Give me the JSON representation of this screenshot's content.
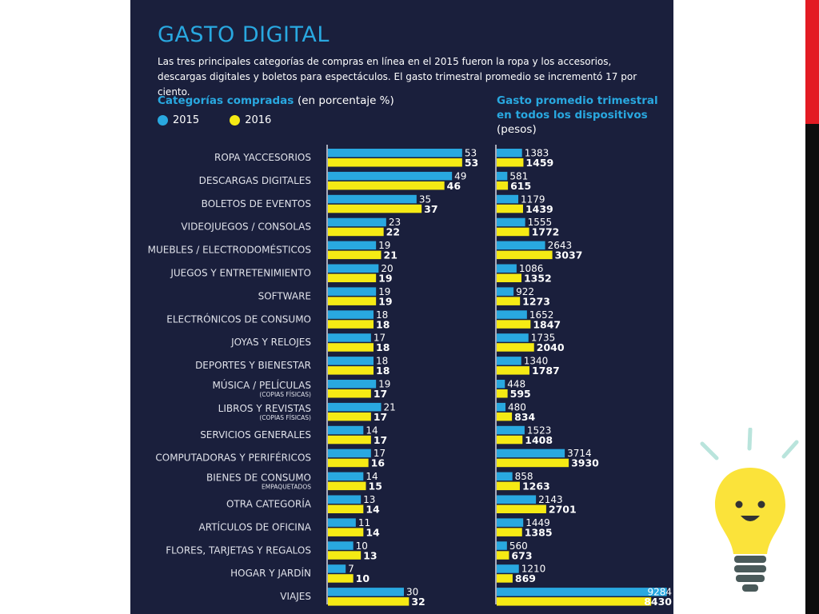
{
  "infographic": {
    "title": "GASTO DIGITAL",
    "subtitle": "Las tres principales categorías de compras en línea en el 2015 fueron la ropa y los accesorios, descargas digitales y boletos para espectáculos. El gasto trimestral promedio se incrementó 17 por ciento.",
    "left_title": "Categorías compradas",
    "left_title_units": "(en porcentaje %)",
    "right_title_lines": [
      "Gasto promedio trimestral",
      "en todos los dispositivos",
      "(pesos)"
    ]
  },
  "colors": {
    "series_2015": "#29a8e0",
    "series_2016": "#f5ea14",
    "panel_background": "#1a1f3c",
    "accent_red": "#e31b23"
  },
  "decoration": {
    "icon": "lightbulb-icon"
  },
  "chart_data": [
    {
      "type": "bar",
      "orientation": "horizontal",
      "title": "Categorías compradas",
      "subtitle": "(en porcentaje %)",
      "legend": [
        "2015",
        "2016"
      ],
      "legend_position": "top-left",
      "categories": [
        {
          "label": "ROPA YACCESORIOS",
          "sublabel": ""
        },
        {
          "label": "DESCARGAS DIGITALES",
          "sublabel": ""
        },
        {
          "label": "BOLETOS DE EVENTOS",
          "sublabel": ""
        },
        {
          "label": "VIDEOJUEGOS / CONSOLAS",
          "sublabel": ""
        },
        {
          "label": "MUEBLES / ELECTRODOMÉSTICOS",
          "sublabel": ""
        },
        {
          "label": "JUEGOS Y ENTRETENIMIENTO",
          "sublabel": ""
        },
        {
          "label": "SOFTWARE",
          "sublabel": ""
        },
        {
          "label": "ELECTRÓNICOS DE CONSUMO",
          "sublabel": ""
        },
        {
          "label": "JOYAS Y RELOJES",
          "sublabel": ""
        },
        {
          "label": "DEPORTES Y BIENESTAR",
          "sublabel": ""
        },
        {
          "label": "MÚSICA / PELÍCULAS",
          "sublabel": "(COPIAS FÍSICAS)"
        },
        {
          "label": "LIBROS Y REVISTAS",
          "sublabel": "(COPIAS FÍSICAS)"
        },
        {
          "label": "SERVICIOS GENERALES",
          "sublabel": ""
        },
        {
          "label": "COMPUTADORAS Y PERIFÉRICOS",
          "sublabel": ""
        },
        {
          "label": "BIENES DE CONSUMO",
          "sublabel": "EMPAQUETADOS"
        },
        {
          "label": "OTRA CATEGORÍA",
          "sublabel": ""
        },
        {
          "label": "ARTÍCULOS DE OFICINA",
          "sublabel": ""
        },
        {
          "label": "FLORES, TARJETAS Y REGALOS",
          "sublabel": ""
        },
        {
          "label": "HOGAR Y JARDÍN",
          "sublabel": ""
        },
        {
          "label": "VIAJES",
          "sublabel": ""
        }
      ],
      "series": [
        {
          "name": "2015",
          "values": [
            53,
            49,
            35,
            23,
            19,
            20,
            19,
            18,
            17,
            18,
            19,
            21,
            14,
            17,
            14,
            13,
            11,
            10,
            7,
            30
          ]
        },
        {
          "name": "2016",
          "values": [
            53,
            46,
            37,
            22,
            21,
            19,
            19,
            18,
            18,
            18,
            17,
            17,
            17,
            16,
            15,
            14,
            14,
            13,
            10,
            32
          ]
        }
      ],
      "xlim": [
        0,
        60
      ]
    },
    {
      "type": "bar",
      "orientation": "horizontal",
      "title": "Gasto promedio trimestral en todos los dispositivos",
      "subtitle": "(pesos)",
      "series": [
        {
          "name": "2015",
          "values": [
            1383,
            581,
            1179,
            1555,
            2643,
            1086,
            922,
            1652,
            1735,
            1340,
            448,
            480,
            1523,
            3714,
            858,
            2143,
            1449,
            560,
            1210,
            9284
          ]
        },
        {
          "name": "2016",
          "values": [
            1459,
            615,
            1439,
            1772,
            3037,
            1352,
            1273,
            1847,
            2040,
            1787,
            595,
            834,
            1408,
            3930,
            1263,
            2701,
            1385,
            673,
            869,
            8430
          ]
        }
      ],
      "xlim": [
        0,
        9600
      ]
    }
  ]
}
